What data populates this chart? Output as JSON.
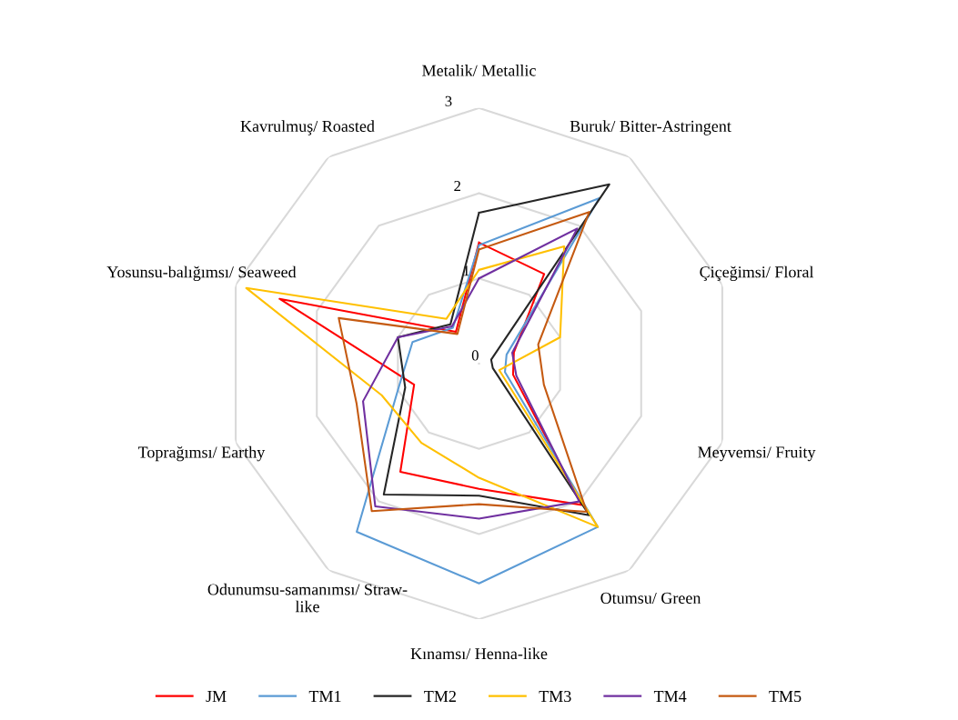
{
  "chart_data": {
    "type": "radar",
    "categories": [
      "Metalik/ Metallic",
      "Buruk/ Bitter-Astringent",
      "Çiçeğimsi/ Floral",
      "Meyvemsi/ Fruity",
      "Otumsu/ Green",
      "Kınamsı/ Henna-like",
      "Odunumsu-samanımsı/ Straw-\nlike",
      "Toprağımsı/ Earthy",
      "Yosunsu-balığımsı/ Seaweed",
      "Kavrulmuş/ Roasted"
    ],
    "series": [
      {
        "name": "JM",
        "color": "#ff0000",
        "values": [
          1.42,
          1.3,
          0.43,
          0.42,
          2.05,
          1.47,
          1.57,
          0.8,
          2.46,
          0.46
        ]
      },
      {
        "name": "TM1",
        "color": "#5b9bd5",
        "values": [
          1.39,
          2.4,
          0.34,
          0.32,
          2.37,
          2.58,
          2.44,
          1.0,
          0.82,
          0.52
        ]
      },
      {
        "name": "TM2",
        "color": "#262626",
        "values": [
          1.77,
          2.6,
          0.15,
          0.17,
          2.2,
          1.55,
          1.9,
          0.91,
          1.0,
          0.57
        ]
      },
      {
        "name": "TM3",
        "color": "#ffc000",
        "values": [
          1.1,
          1.7,
          1.0,
          0.25,
          2.37,
          1.34,
          1.15,
          1.2,
          2.87,
          0.65
        ]
      },
      {
        "name": "TM4",
        "color": "#7030a0",
        "values": [
          1.0,
          1.96,
          0.41,
          0.46,
          2.0,
          1.82,
          2.07,
          1.43,
          1.0,
          0.54
        ]
      },
      {
        "name": "TM5",
        "color": "#c55a11",
        "values": [
          1.34,
          2.2,
          0.73,
          0.8,
          2.15,
          1.65,
          2.14,
          1.51,
          1.73,
          0.43
        ]
      }
    ],
    "ylim": [
      0,
      3
    ],
    "yticks": [
      0,
      1,
      2,
      3
    ],
    "grid": true,
    "legend": "bottom"
  }
}
